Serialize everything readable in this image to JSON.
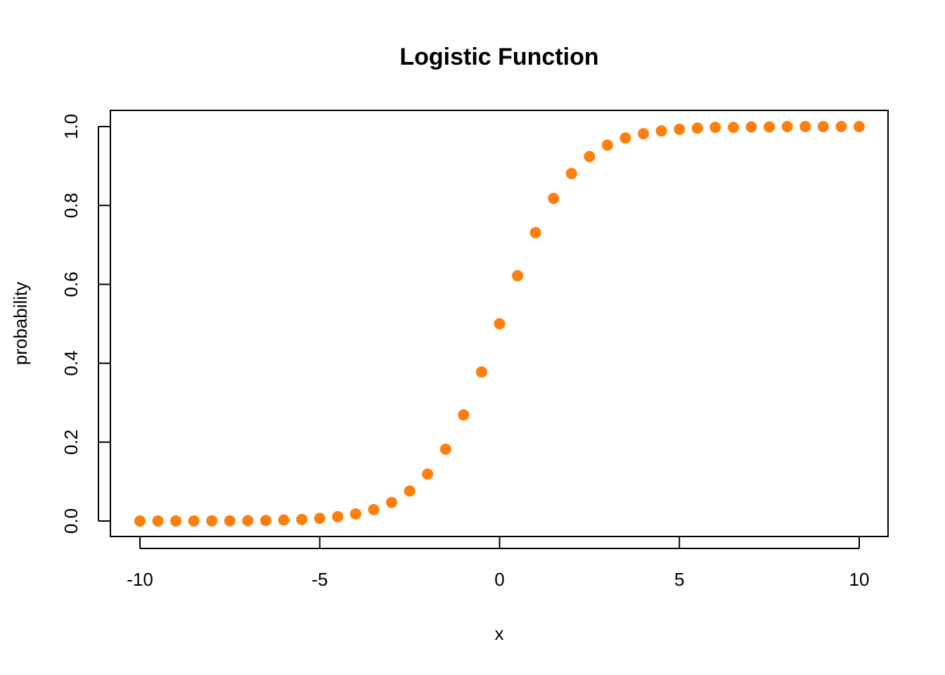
{
  "chart_data": {
    "type": "scatter",
    "title": "Logistic Function",
    "xlabel": "x",
    "ylabel": "probability",
    "xlim": [
      -10,
      10
    ],
    "ylim": [
      0,
      1
    ],
    "grid": false,
    "x_ticks": [
      -10,
      -5,
      0,
      5,
      10
    ],
    "x_tick_labels": [
      "-10",
      "-5",
      "0",
      "5",
      "10"
    ],
    "y_ticks": [
      0,
      0.2,
      0.4,
      0.6,
      0.8,
      1.0
    ],
    "y_tick_labels": [
      "0.0",
      "0.2",
      "0.4",
      "0.6",
      "0.8",
      "1.0"
    ],
    "marker_color": "#ff7f0e",
    "series": [
      {
        "x": [
          -10,
          -9.5,
          -9,
          -8.5,
          -8,
          -7.5,
          -7,
          -6.5,
          -6,
          -5.5,
          -5,
          -4.5,
          -4,
          -3.5,
          -3,
          -2.5,
          -2,
          -1.5,
          -1,
          -0.5,
          0,
          0.5,
          1,
          1.5,
          2,
          2.5,
          3,
          3.5,
          4,
          4.5,
          5,
          5.5,
          6,
          6.5,
          7,
          7.5,
          8,
          8.5,
          9,
          9.5,
          10
        ],
        "y": [
          5e-05,
          7e-05,
          0.00012,
          0.0002,
          0.00034,
          0.00055,
          0.00091,
          0.0015,
          0.0025,
          0.0041,
          0.0067,
          0.011,
          0.018,
          0.029,
          0.047,
          0.076,
          0.119,
          0.182,
          0.269,
          0.378,
          0.5,
          0.622,
          0.731,
          0.818,
          0.881,
          0.924,
          0.953,
          0.971,
          0.982,
          0.989,
          0.993,
          0.996,
          0.998,
          0.998,
          0.999,
          0.999,
          1.0,
          1.0,
          1.0,
          1.0,
          1.0
        ]
      }
    ]
  }
}
